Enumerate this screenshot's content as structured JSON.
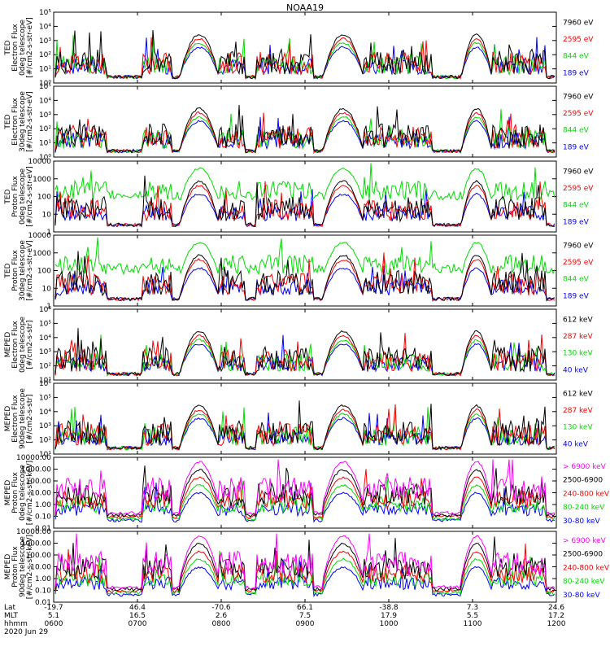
{
  "title": "NOAA19",
  "colors": {
    "black": "#000000",
    "blue": "#0000ff",
    "red": "#ff0000",
    "green": "#00dd00",
    "magenta": "#ff00ff"
  },
  "footer": {
    "row_labels": [
      "Lat",
      "MLT",
      "hhmm",
      "2020 Jun 29"
    ],
    "lat": [
      "-19.7",
      "46.4",
      "-70.6",
      "66.1",
      "-38.8",
      "7.3",
      "24.6"
    ],
    "mlt": [
      "5.1",
      "16.5",
      "2.6",
      "7.5",
      "17.9",
      "5.5",
      "17.2"
    ],
    "hhmm": [
      "0600",
      "0700",
      "0800",
      "0900",
      "1000",
      "1100",
      "1200"
    ]
  },
  "chart_data": [
    {
      "type": "line",
      "panel": 1,
      "ylabel_lines": [
        "TED",
        "Electron Flux",
        "0deg telescope",
        "[#/cm2-s-str-eV]"
      ],
      "ylim": [
        1,
        100000
      ],
      "log_scale": true,
      "yticks": [
        "10⁰",
        "10¹",
        "10²",
        "10³",
        "10⁴",
        "10⁵"
      ],
      "legend": [
        {
          "name": "7960 eV",
          "color": "black"
        },
        {
          "name": "2595 eV",
          "color": "red"
        },
        {
          "name": "844 eV",
          "color": "green"
        },
        {
          "name": "189 eV",
          "color": "blue"
        }
      ],
      "x": [
        "0600",
        "0700",
        "0800",
        "0900",
        "1000",
        "1100",
        "1200"
      ]
    },
    {
      "type": "line",
      "panel": 2,
      "ylabel_lines": [
        "TED",
        "Electron Flux",
        "30deg telescope",
        "[#/cm2-s-str-eV]"
      ],
      "ylim": [
        1,
        100000
      ],
      "log_scale": true,
      "yticks": [
        "10⁰",
        "10¹",
        "10²",
        "10³",
        "10⁴",
        "10⁵"
      ],
      "legend": [
        {
          "name": "7960 eV",
          "color": "black"
        },
        {
          "name": "2595 eV",
          "color": "red"
        },
        {
          "name": "844 eV",
          "color": "green"
        },
        {
          "name": "189 eV",
          "color": "blue"
        }
      ]
    },
    {
      "type": "line",
      "panel": 3,
      "ylabel_lines": [
        "TED",
        "Proton Flux",
        "0deg telescope",
        "[#/cm2-s-str-eV]"
      ],
      "ylim": [
        1,
        10000
      ],
      "log_scale": true,
      "yticks": [
        "1",
        "10",
        "100",
        "1000",
        "10000"
      ],
      "legend": [
        {
          "name": "7960 eV",
          "color": "black"
        },
        {
          "name": "2595 eV",
          "color": "red"
        },
        {
          "name": "844 eV",
          "color": "green"
        },
        {
          "name": "189 eV",
          "color": "blue"
        }
      ]
    },
    {
      "type": "line",
      "panel": 4,
      "ylabel_lines": [
        "TED",
        "Proton Flux",
        "30deg telescope",
        "[#/cm2-s-str-eV]"
      ],
      "ylim": [
        1,
        10000
      ],
      "log_scale": true,
      "yticks": [
        "1",
        "10",
        "100",
        "1000",
        "10000"
      ],
      "legend": [
        {
          "name": "7960 eV",
          "color": "black"
        },
        {
          "name": "2595 eV",
          "color": "red"
        },
        {
          "name": "844 eV",
          "color": "green"
        },
        {
          "name": "189 eV",
          "color": "blue"
        }
      ]
    },
    {
      "type": "line",
      "panel": 5,
      "ylabel_lines": [
        "MEPED",
        "Electron Flux",
        "0deg telescope",
        "[#/cm2-s-str]"
      ],
      "ylim": [
        10,
        1000000
      ],
      "log_scale": true,
      "yticks": [
        "10¹",
        "10²",
        "10³",
        "10⁴",
        "10⁵",
        "10⁶"
      ],
      "legend": [
        {
          "name": "612 keV",
          "color": "black"
        },
        {
          "name": "287 keV",
          "color": "red"
        },
        {
          "name": "130 keV",
          "color": "green"
        },
        {
          "name": "40 keV",
          "color": "blue"
        }
      ]
    },
    {
      "type": "line",
      "panel": 6,
      "ylabel_lines": [
        "MEPED",
        "Electron Flux",
        "90deg telescope",
        "[#/cm2-s-str]"
      ],
      "ylim": [
        10,
        1000000
      ],
      "log_scale": true,
      "yticks": [
        "10¹",
        "10²",
        "10³",
        "10⁴",
        "10⁵",
        "10⁶"
      ],
      "legend": [
        {
          "name": "612 keV",
          "color": "black"
        },
        {
          "name": "287 keV",
          "color": "red"
        },
        {
          "name": "130 keV",
          "color": "green"
        },
        {
          "name": "40 keV",
          "color": "blue"
        }
      ]
    },
    {
      "type": "line",
      "panel": 7,
      "ylabel_lines": [
        "MEPED",
        "Proton Flux",
        "0deg telescope",
        "[#/cm2-s-str-keV]"
      ],
      "ylim": [
        0.01,
        10000
      ],
      "log_scale": true,
      "yticks": [
        "0.01",
        "0.10",
        "1.00",
        "10.00",
        "100.00",
        "1000.00",
        "10000.00"
      ],
      "legend": [
        {
          "name": "> 6900 keV",
          "color": "magenta"
        },
        {
          "name": "2500-6900",
          "color": "black"
        },
        {
          "name": "240-800 keV",
          "color": "red"
        },
        {
          "name": "80-240 keV",
          "color": "green"
        },
        {
          "name": "30-80 keV",
          "color": "blue"
        }
      ]
    },
    {
      "type": "line",
      "panel": 8,
      "ylabel_lines": [
        "MEPED",
        "Proton Flux",
        "90deg telescope",
        "[#/cm2-s-str-keV]"
      ],
      "ylim": [
        0.01,
        10000
      ],
      "log_scale": true,
      "yticks": [
        "0.01",
        "0.10",
        "1.00",
        "10.00",
        "100.00",
        "1000.00",
        "10000.00"
      ],
      "legend": [
        {
          "name": "> 6900 keV",
          "color": "magenta"
        },
        {
          "name": "2500-6900",
          "color": "black"
        },
        {
          "name": "240-800 keV",
          "color": "red"
        },
        {
          "name": "80-240 keV",
          "color": "green"
        },
        {
          "name": "30-80 keV",
          "color": "blue"
        }
      ]
    }
  ]
}
